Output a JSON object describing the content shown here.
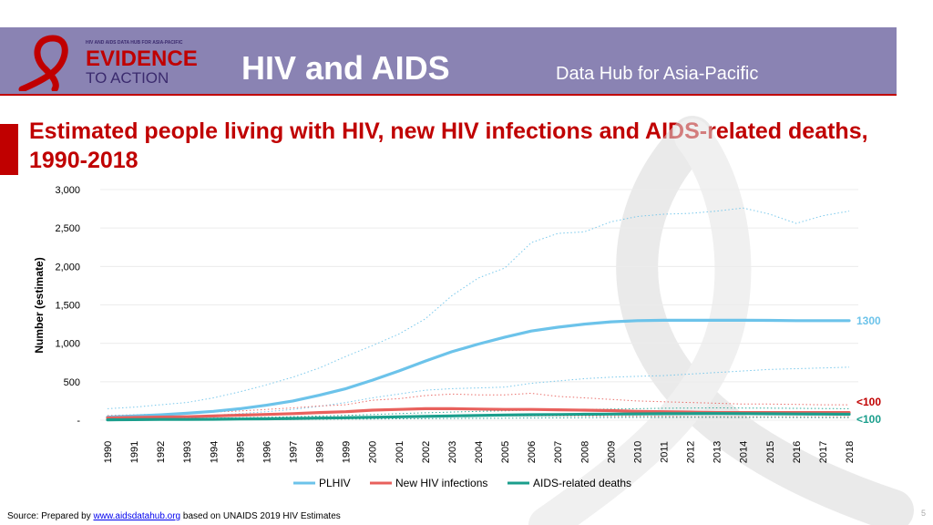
{
  "header": {
    "title": "HIV and AIDS",
    "subtitle": "Data Hub for Asia-Pacific",
    "logo": {
      "small_text": "HIV AND AIDS DATA HUB FOR ASIA-PACIFIC",
      "line1": "EVIDENCE",
      "line2": "TO ACTION"
    }
  },
  "slide_title": "Estimated people living with HIV, new HIV infections and AIDS-related deaths, 1990-2018",
  "footer": {
    "source_prefix": "Source: Prepared by ",
    "source_link": "www.aidsdatahub.org",
    "source_suffix": "  based on UNAIDS 2019 HIV Estimates",
    "page_number": "5"
  },
  "colors": {
    "banner": "#8a83b3",
    "title_red": "#c00000",
    "plhiv": "#6cc3ea",
    "new_infections": "#e8605c",
    "deaths": "#1a9e8c"
  },
  "chart_data": {
    "type": "line",
    "ylabel": "Number (estimate)",
    "xlabel": "",
    "ylim": [
      0,
      3000
    ],
    "yticks": [
      "-",
      "500",
      "1,000",
      "1,500",
      "2,000",
      "2,500",
      "3,000"
    ],
    "x": [
      "1990",
      "1991",
      "1992",
      "1993",
      "1994",
      "1995",
      "1996",
      "1997",
      "1998",
      "1999",
      "2000",
      "2001",
      "2002",
      "2003",
      "2004",
      "2005",
      "2006",
      "2007",
      "2008",
      "2009",
      "2010",
      "2011",
      "2012",
      "2013",
      "2014",
      "2015",
      "2016",
      "2017",
      "2018"
    ],
    "grid": true,
    "legend_position": "bottom",
    "series": [
      {
        "name": "PLHIV",
        "color": "#6cc3ea",
        "values": [
          40,
          55,
          70,
          90,
          115,
          150,
          195,
          250,
          325,
          410,
          520,
          640,
          770,
          890,
          990,
          1080,
          1160,
          1210,
          1250,
          1280,
          1295,
          1300,
          1300,
          1300,
          1300,
          1298,
          1295,
          1295,
          1295
        ],
        "upper": [
          150,
          170,
          200,
          230,
          290,
          370,
          460,
          560,
          680,
          830,
          970,
          1120,
          1320,
          1620,
          1850,
          1980,
          2310,
          2430,
          2450,
          2580,
          2650,
          2680,
          2690,
          2720,
          2760,
          2680,
          2560,
          2660,
          2720
        ],
        "lower": [
          15,
          25,
          35,
          45,
          65,
          85,
          110,
          140,
          180,
          230,
          290,
          340,
          390,
          410,
          420,
          430,
          480,
          510,
          540,
          560,
          570,
          580,
          600,
          620,
          640,
          660,
          670,
          680,
          690
        ]
      },
      {
        "name": "New HIV infections",
        "color": "#e8605c",
        "values": [
          30,
          35,
          40,
          45,
          55,
          65,
          75,
          85,
          100,
          110,
          130,
          140,
          150,
          150,
          145,
          140,
          140,
          135,
          130,
          125,
          115,
          110,
          105,
          100,
          100,
          100,
          100,
          100,
          100
        ],
        "upper": [
          60,
          70,
          80,
          90,
          105,
          120,
          140,
          160,
          185,
          200,
          260,
          280,
          320,
          340,
          330,
          330,
          350,
          310,
          290,
          270,
          250,
          240,
          230,
          220,
          210,
          210,
          205,
          200,
          200
        ],
        "lower": [
          10,
          12,
          15,
          18,
          20,
          25,
          30,
          35,
          40,
          45,
          50,
          55,
          55,
          55,
          55,
          55,
          55,
          55,
          55,
          50,
          50,
          50,
          45,
          45,
          45,
          45,
          45,
          45,
          45
        ]
      },
      {
        "name": "AIDS-related deaths",
        "color": "#1a9e8c",
        "values": [
          5,
          7,
          9,
          10,
          12,
          15,
          18,
          22,
          27,
          32,
          38,
          44,
          50,
          56,
          62,
          67,
          71,
          74,
          77,
          80,
          82,
          84,
          85,
          86,
          85,
          83,
          81,
          79,
          77
        ],
        "upper": [
          10,
          14,
          18,
          22,
          26,
          32,
          38,
          45,
          54,
          63,
          74,
          85,
          96,
          105,
          115,
          122,
          130,
          135,
          140,
          145,
          150,
          155,
          158,
          160,
          158,
          156,
          154,
          152,
          150
        ],
        "lower": [
          2,
          3,
          4,
          5,
          6,
          7,
          8,
          10,
          12,
          14,
          16,
          18,
          20,
          22,
          24,
          26,
          28,
          30,
          32,
          34,
          35,
          36,
          37,
          37,
          36,
          35,
          34,
          33,
          32
        ]
      }
    ],
    "annotations": [
      {
        "series": "PLHIV",
        "text": "1300"
      },
      {
        "series": "New HIV infections",
        "text": "<100"
      },
      {
        "series": "AIDS-related deaths",
        "text": "<100"
      }
    ]
  }
}
